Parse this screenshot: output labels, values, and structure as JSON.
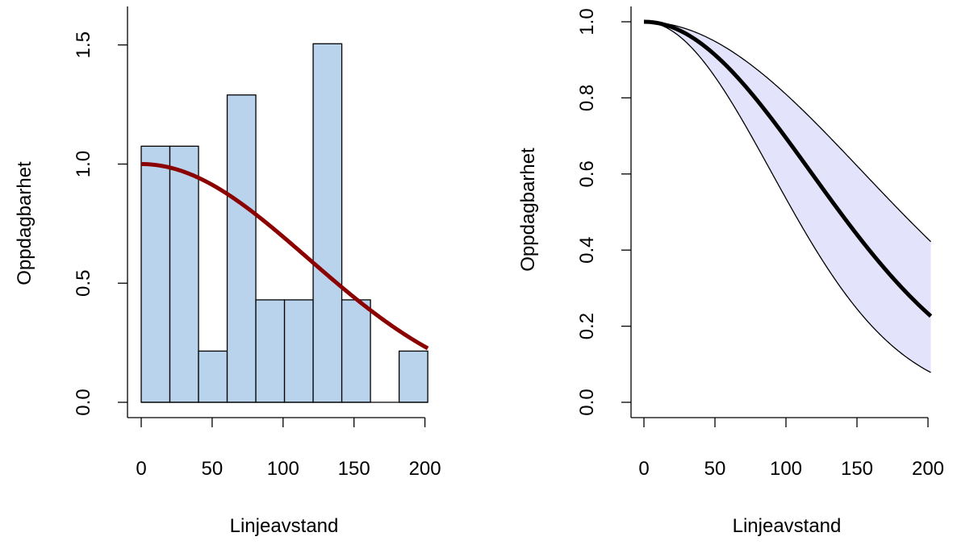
{
  "chart_data": [
    {
      "type": "bar",
      "xlabel": "Linjeavstand",
      "ylabel": "Oppdagbarhet",
      "x_ticks": [
        0,
        50,
        100,
        150,
        200
      ],
      "y_ticks": [
        0.0,
        0.5,
        1.0,
        1.5
      ],
      "y_tick_labels": [
        "0.0",
        "0.5",
        "1.0",
        "1.5"
      ],
      "bins": [
        {
          "x0": 0,
          "x1": 20.2,
          "value": 1.075
        },
        {
          "x0": 20.2,
          "x1": 40.4,
          "value": 1.075
        },
        {
          "x0": 40.4,
          "x1": 60.6,
          "value": 0.215
        },
        {
          "x0": 60.6,
          "x1": 80.8,
          "value": 1.29
        },
        {
          "x0": 80.8,
          "x1": 101.0,
          "value": 0.43
        },
        {
          "x0": 101.0,
          "x1": 121.2,
          "value": 0.43
        },
        {
          "x0": 121.2,
          "x1": 141.4,
          "value": 1.505
        },
        {
          "x0": 141.4,
          "x1": 161.6,
          "value": 0.43
        },
        {
          "x0": 161.6,
          "x1": 181.8,
          "value": 0.0
        },
        {
          "x0": 181.8,
          "x1": 202.0,
          "value": 0.215
        }
      ],
      "fit_curve": {
        "shape": "half-normal",
        "sigma": 117.2,
        "x_max": 202
      },
      "colors": {
        "bars": "#bad3ec",
        "curve": "#8b0000"
      }
    },
    {
      "type": "line",
      "xlabel": "Linjeavstand",
      "ylabel": "Oppdagbarhet",
      "x_ticks": [
        0,
        50,
        100,
        150,
        200
      ],
      "y_ticks": [
        0.0,
        0.2,
        0.4,
        0.6,
        0.8,
        1.0
      ],
      "y_tick_labels": [
        "0.0",
        "0.2",
        "0.4",
        "0.6",
        "0.8",
        "1.0"
      ],
      "estimate": {
        "shape": "half-normal",
        "sigma": 117.2,
        "x_max": 202
      },
      "lower_band": {
        "shape": "half-normal",
        "sigma": 89.5,
        "x_max": 202
      },
      "upper_band": {
        "shape": "half-normal",
        "sigma": 153.8,
        "x_max": 202
      },
      "colors": {
        "estimate": "#000000",
        "band_fill": "#e3e3fb",
        "band_line": "#000000"
      }
    }
  ]
}
